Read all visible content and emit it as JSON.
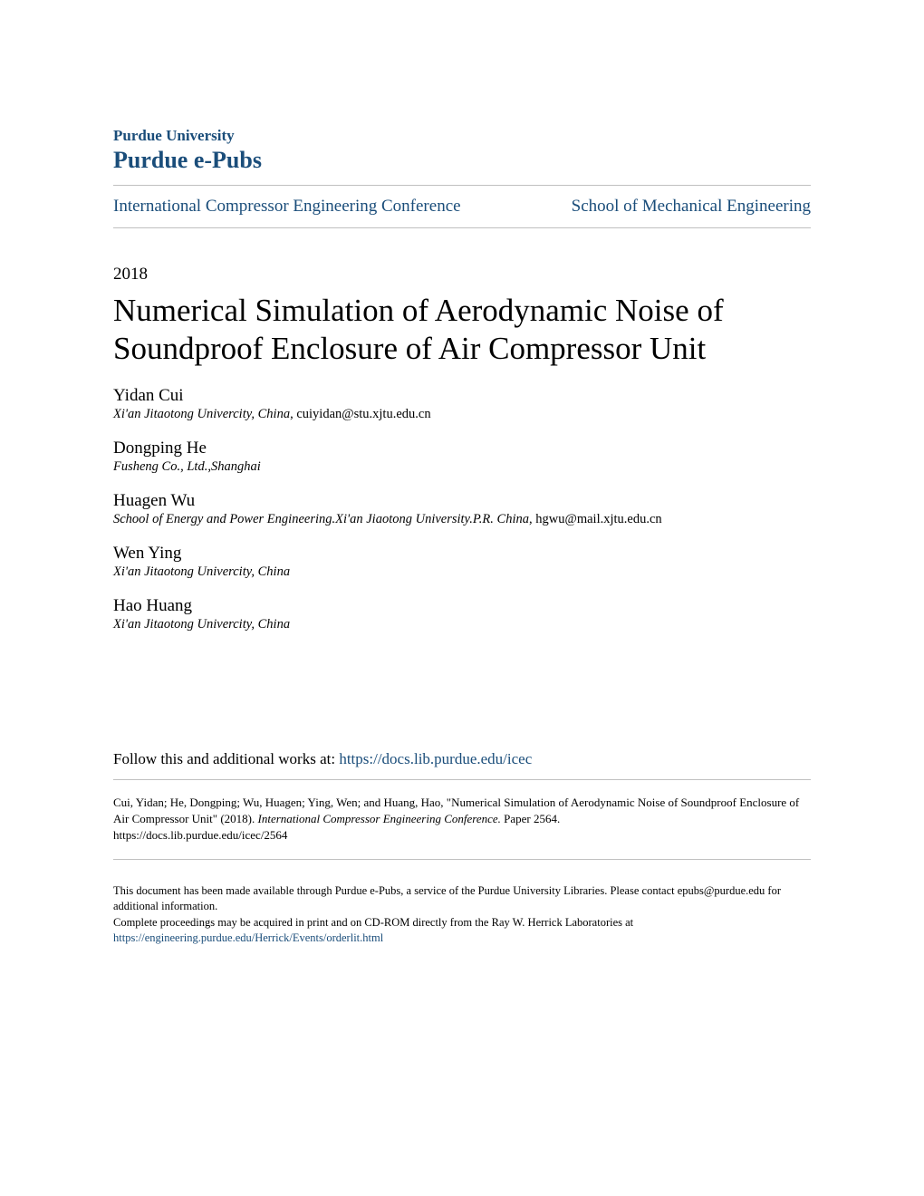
{
  "header": {
    "university": "Purdue University",
    "site_name": "Purdue e-Pubs",
    "site_link_color": "#1a4d7a"
  },
  "breadcrumb": {
    "left": "International Compressor Engineering Conference",
    "right": "School of Mechanical Engineering"
  },
  "paper": {
    "year": "2018",
    "title": "Numerical Simulation of Aerodynamic Noise of Soundproof Enclosure of Air Compressor Unit"
  },
  "authors": [
    {
      "name": "Yidan Cui",
      "affiliation": "Xi'an Jitaotong Univercity, China",
      "email": ", cuiyidan@stu.xjtu.edu.cn"
    },
    {
      "name": "Dongping He",
      "affiliation": "Fusheng Co., Ltd.,Shanghai",
      "email": ""
    },
    {
      "name": "Huagen Wu",
      "affiliation": "School of Energy and Power Engineering.Xi'an Jiaotong University.P.R. China",
      "email": ", hgwu@mail.xjtu.edu.cn"
    },
    {
      "name": "Wen Ying",
      "affiliation": "Xi'an Jitaotong Univercity, China",
      "email": ""
    },
    {
      "name": "Hao Huang",
      "affiliation": "Xi'an Jitaotong Univercity, China",
      "email": ""
    }
  ],
  "follow": {
    "prefix": "Follow this and additional works at: ",
    "link_text": "https://docs.lib.purdue.edu/icec"
  },
  "citation": {
    "text_before": "Cui, Yidan; He, Dongping; Wu, Huagen; Ying, Wen; and Huang, Hao, \"Numerical Simulation of Aerodynamic Noise of Soundproof Enclosure of Air Compressor Unit\" (2018). ",
    "italic": "International Compressor Engineering Conference.",
    "text_after": " Paper 2564.",
    "url": "https://docs.lib.purdue.edu/icec/2564"
  },
  "footnote": {
    "line1": "This document has been made available through Purdue e-Pubs, a service of the Purdue University Libraries. Please contact epubs@purdue.edu for additional information.",
    "line2_prefix": "Complete proceedings may be acquired in print and on CD-ROM directly from the Ray W. Herrick Laboratories at ",
    "link_text": "https://engineering.purdue.edu/Herrick/Events/orderlit.html"
  },
  "styles": {
    "link_color": "#1a4d7a",
    "text_color": "#000000",
    "divider_color": "#c0c0c0",
    "background_color": "#ffffff",
    "title_fontsize": 35,
    "body_fontsize": 17,
    "small_fontsize": 13
  }
}
